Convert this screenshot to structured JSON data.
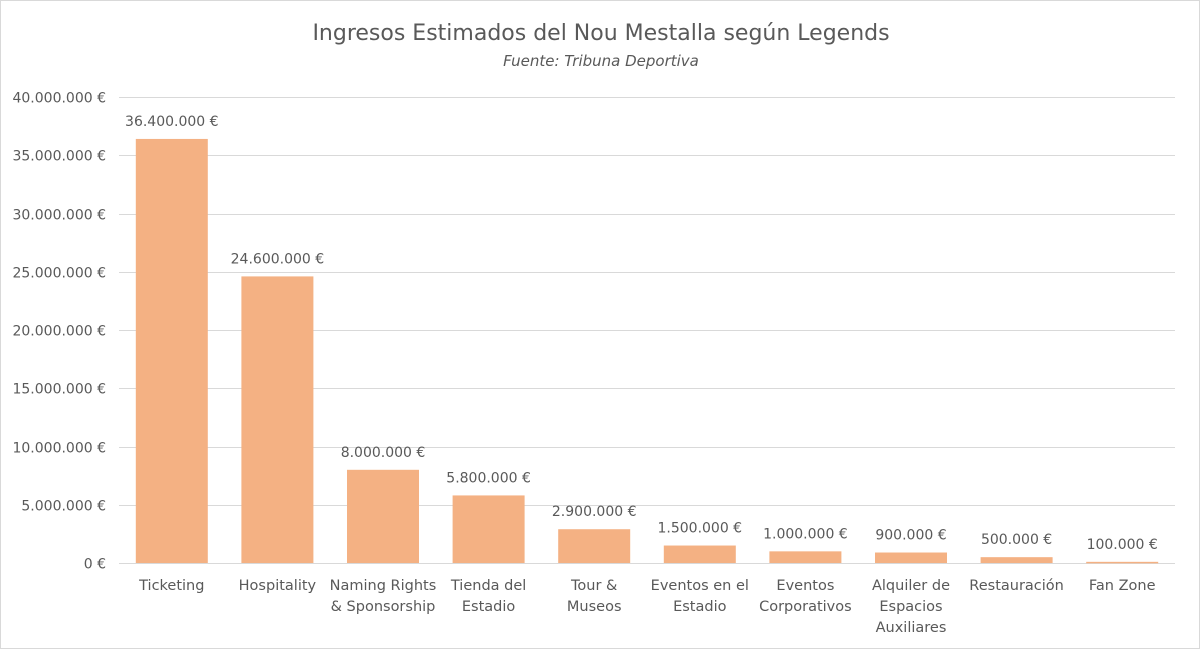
{
  "chart_data": {
    "type": "bar",
    "title": "Ingresos Estimados del Nou Mestalla según Legends",
    "subtitle": "Fuente: Tribuna Deportiva",
    "xlabel": "",
    "ylabel": "",
    "ylim": [
      0,
      40000000
    ],
    "yticks": [
      0,
      5000000,
      10000000,
      15000000,
      20000000,
      25000000,
      30000000,
      35000000,
      40000000
    ],
    "ytick_labels": [
      "0 €",
      "5.000.000 €",
      "10.000.000 €",
      "15.000.000 €",
      "20.000.000 €",
      "25.000.000 €",
      "30.000.000 €",
      "35.000.000 €",
      "40.000.000 €"
    ],
    "categories": [
      [
        "Ticketing"
      ],
      [
        "Hospitality"
      ],
      [
        "Naming Rights",
        "& Sponsorship"
      ],
      [
        "Tienda del",
        "Estadio"
      ],
      [
        "Tour &",
        "Museos"
      ],
      [
        "Eventos en el",
        "Estadio"
      ],
      [
        "Eventos",
        "Corporativos"
      ],
      [
        "Alquiler de",
        "Espacios",
        "Auxiliares"
      ],
      [
        "Restauración"
      ],
      [
        "Fan Zone"
      ]
    ],
    "values": [
      36400000,
      24600000,
      8000000,
      5800000,
      2900000,
      1500000,
      1000000,
      900000,
      500000,
      100000
    ],
    "data_labels": [
      "36.400.000 €",
      "24.600.000 €",
      "8.000.000 €",
      "5.800.000 €",
      "2.900.000 €",
      "1.500.000 €",
      "1.000.000 €",
      "900.000 €",
      "500.000 €",
      "100.000 €"
    ],
    "bar_color": "#f4b183",
    "grid": true,
    "legend": "none"
  }
}
